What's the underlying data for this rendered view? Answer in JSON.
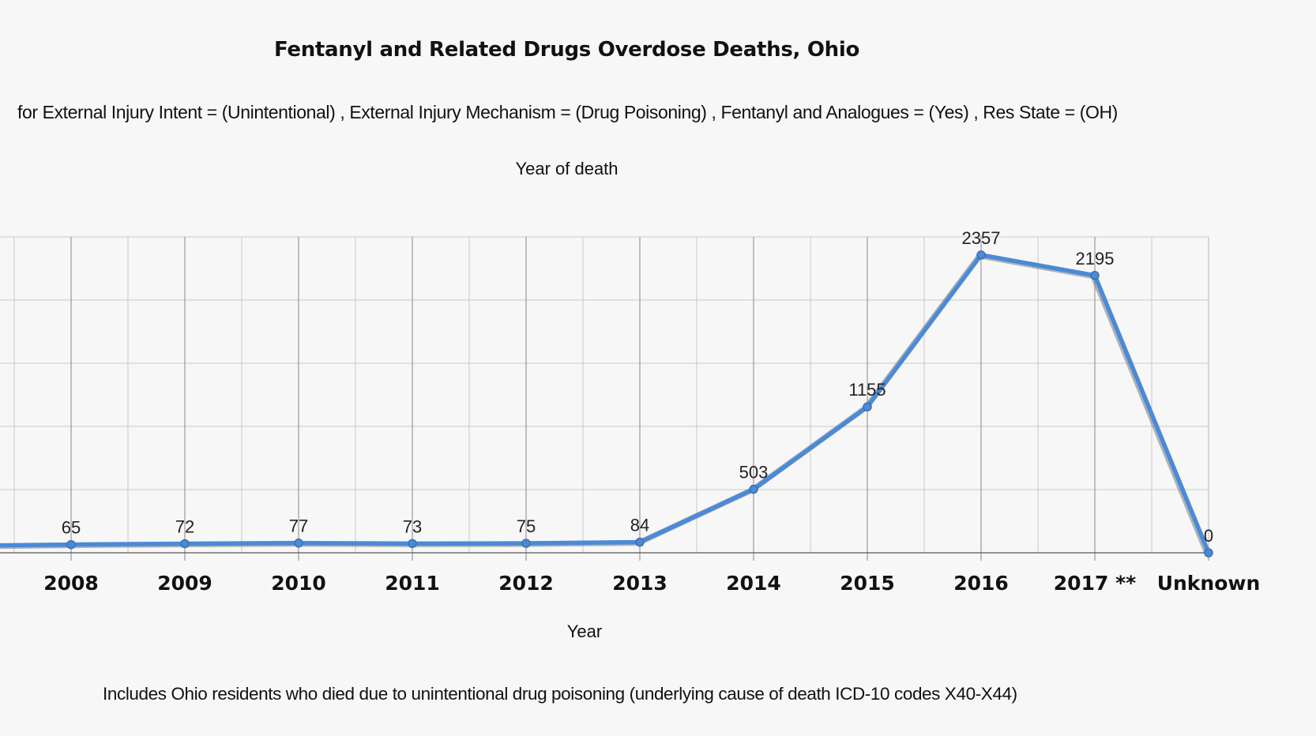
{
  "chart_data": {
    "type": "line",
    "title": "Fentanyl and Related Drugs Overdose Deaths, Ohio",
    "subtitle": "for External Injury Intent = (Unintentional) , External Injury Mechanism = (Drug Poisoning) , Fentanyl and Analogues = (Yes) , Res State = (OH)",
    "series_header": "Year of death",
    "xlabel": "Year",
    "ylabel": "",
    "categories": [
      "2008",
      "2009",
      "2010",
      "2011",
      "2012",
      "2013",
      "2014",
      "2015",
      "2016",
      "2017 **",
      "Unknown"
    ],
    "series": [
      {
        "values": [
          65,
          72,
          77,
          73,
          75,
          84,
          503,
          1155,
          2357,
          2195,
          0
        ],
        "color": "#4a8ad8"
      }
    ],
    "data_labels": [
      "65",
      "72",
      "77",
      "73",
      "75",
      "84",
      "503",
      "1155",
      "2357",
      "2195",
      "0"
    ],
    "ylim": [
      0,
      2500
    ],
    "grid": true,
    "legend": "none"
  },
  "footnote": "Includes Ohio residents who died due to unintentional drug poisoning (underlying cause of death ICD-10 codes X40-X44)"
}
